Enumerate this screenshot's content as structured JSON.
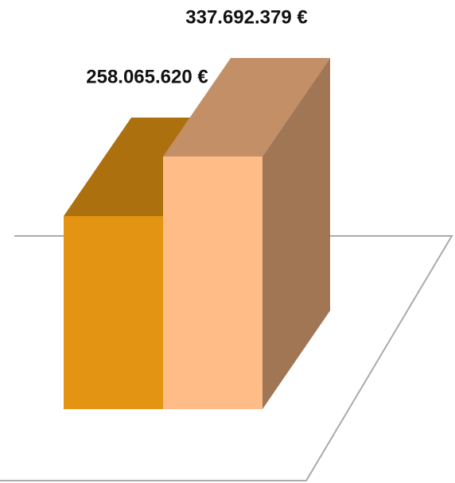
{
  "chart_data": {
    "type": "bar3d",
    "values": [
      258065620,
      337692379
    ],
    "value_labels": [
      "258.065.620 €",
      "337.692.379 €"
    ],
    "colors": [
      "#e39412",
      "#ffbc87"
    ]
  }
}
